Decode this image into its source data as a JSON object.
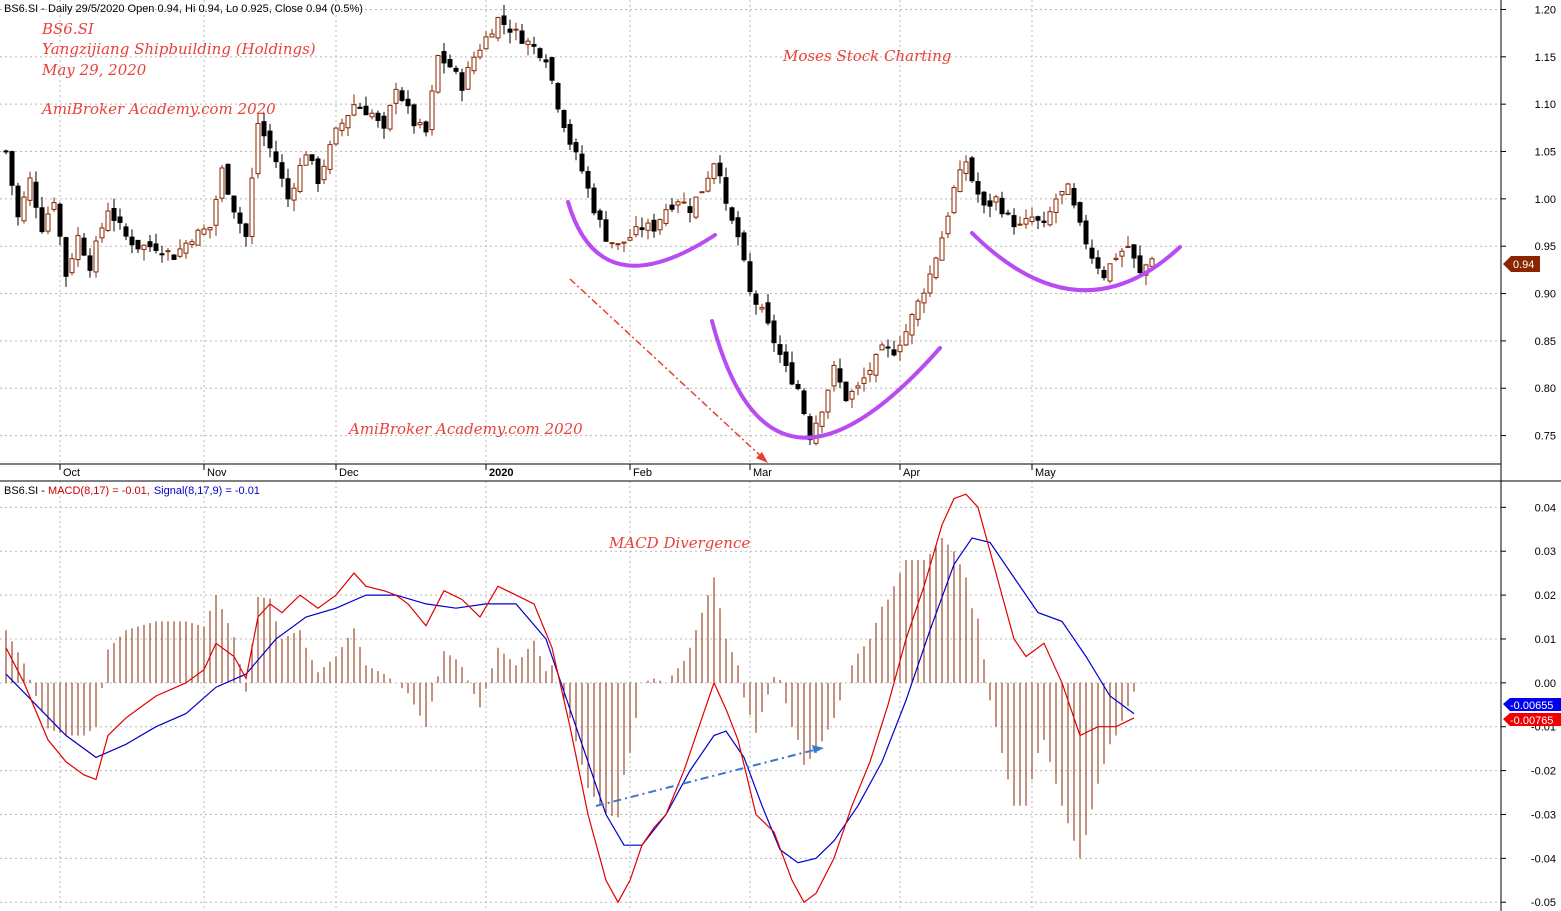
{
  "header": {
    "price_info": "BS6.SI - Daily 29/5/2020 Open 0.94, Hi 0.94, Lo 0.925, Close 0.94 (0.5%)",
    "macd_prefix": "BS6.SI - ",
    "macd_label": "MACD(8,17) = -0.01,",
    "signal_label": "Signal(8,17,9) = -0.01"
  },
  "annotations": {
    "ticker": "BS6.SI",
    "company": "Yangzijiang Shipbuilding (Holdings)",
    "date": "May 29, 2020",
    "watermark_top": "AmiBroker Academy.com  2020",
    "watermark_bottom": "AmiBroker Academy.com  2020",
    "title_right": "Moses Stock Charting",
    "macd_title": "MACD Divergence"
  },
  "badges": {
    "price": "0.94",
    "signal_value": "-0.00655",
    "macd_value": "-0.00765"
  },
  "colors": {
    "bull": "#8b2500",
    "bear": "#000000",
    "macd": "#e00000",
    "signal": "#0000cc",
    "hist": "#8b2500",
    "pattern": "#b84cf2",
    "annotation": "#e8413a",
    "grid": "#b8b8b8"
  },
  "chart_data": [
    {
      "type": "candlestick",
      "ylim": [
        0.72,
        1.21
      ],
      "yticks": [
        0.75,
        0.8,
        0.85,
        0.9,
        0.95,
        1.0,
        1.05,
        1.1,
        1.15,
        1.2
      ],
      "ytick_labels": [
        "0.75",
        "0.80",
        "0.85",
        "0.90",
        "0.95",
        "1.00",
        "1.05",
        "1.10",
        "1.15",
        "1.20"
      ],
      "x_labels": [
        {
          "label": "Oct",
          "bar": 9
        },
        {
          "label": "Nov",
          "bar": 33
        },
        {
          "label": "Dec",
          "bar": 55
        },
        {
          "label": "2020",
          "bar": 80
        },
        {
          "label": "Feb",
          "bar": 104
        },
        {
          "label": "Mar",
          "bar": 124
        },
        {
          "label": "Apr",
          "bar": 149
        },
        {
          "label": "May",
          "bar": 171
        }
      ],
      "anchors": [
        [
          0,
          1.05
        ],
        [
          2,
          0.98
        ],
        [
          4,
          1.02
        ],
        [
          6,
          0.97
        ],
        [
          8,
          1.0
        ],
        [
          10,
          0.92
        ],
        [
          12,
          0.96
        ],
        [
          14,
          0.93
        ],
        [
          17,
          0.99
        ],
        [
          20,
          0.96
        ],
        [
          22,
          0.95
        ],
        [
          25,
          0.95
        ],
        [
          28,
          0.94
        ],
        [
          31,
          0.96
        ],
        [
          34,
          0.97
        ],
        [
          36,
          1.03
        ],
        [
          38,
          0.99
        ],
        [
          40,
          0.96
        ],
        [
          42,
          1.08
        ],
        [
          45,
          1.04
        ],
        [
          47,
          1.0
        ],
        [
          50,
          1.05
        ],
        [
          52,
          1.02
        ],
        [
          55,
          1.07
        ],
        [
          58,
          1.1
        ],
        [
          61,
          1.09
        ],
        [
          63,
          1.07
        ],
        [
          65,
          1.12
        ],
        [
          68,
          1.08
        ],
        [
          70,
          1.07
        ],
        [
          72,
          1.15
        ],
        [
          74,
          1.14
        ],
        [
          76,
          1.12
        ],
        [
          78,
          1.15
        ],
        [
          80,
          1.17
        ],
        [
          82,
          1.19
        ],
        [
          84,
          1.18
        ],
        [
          86,
          1.17
        ],
        [
          88,
          1.16
        ],
        [
          90,
          1.15
        ],
        [
          92,
          1.1
        ],
        [
          94,
          1.06
        ],
        [
          96,
          1.03
        ],
        [
          98,
          0.99
        ],
        [
          100,
          0.96
        ],
        [
          102,
          0.95
        ],
        [
          104,
          0.96
        ],
        [
          106,
          0.97
        ],
        [
          108,
          0.97
        ],
        [
          110,
          0.99
        ],
        [
          112,
          1.0
        ],
        [
          114,
          0.99
        ],
        [
          116,
          1.01
        ],
        [
          118,
          1.04
        ],
        [
          119,
          1.03
        ],
        [
          120,
          0.99
        ],
        [
          122,
          0.96
        ],
        [
          124,
          0.9
        ],
        [
          126,
          0.88
        ],
        [
          128,
          0.85
        ],
        [
          130,
          0.82
        ],
        [
          132,
          0.8
        ],
        [
          134,
          0.75
        ],
        [
          136,
          0.78
        ],
        [
          138,
          0.82
        ],
        [
          140,
          0.79
        ],
        [
          142,
          0.8
        ],
        [
          144,
          0.82
        ],
        [
          146,
          0.84
        ],
        [
          148,
          0.84
        ],
        [
          150,
          0.86
        ],
        [
          152,
          0.89
        ],
        [
          154,
          0.92
        ],
        [
          156,
          0.96
        ],
        [
          158,
          1.01
        ],
        [
          160,
          1.04
        ],
        [
          161,
          1.02
        ],
        [
          163,
          0.99
        ],
        [
          165,
          1.0
        ],
        [
          167,
          0.98
        ],
        [
          169,
          0.97
        ],
        [
          171,
          0.98
        ],
        [
          173,
          0.97
        ],
        [
          175,
          1.0
        ],
        [
          177,
          1.01
        ],
        [
          179,
          0.97
        ],
        [
          181,
          0.94
        ],
        [
          183,
          0.92
        ],
        [
          185,
          0.94
        ],
        [
          187,
          0.95
        ],
        [
          189,
          0.92
        ],
        [
          191,
          0.94
        ]
      ]
    },
    {
      "type": "macd",
      "ylim": [
        -0.052,
        0.046
      ],
      "yticks": [
        -0.05,
        -0.04,
        -0.03,
        -0.02,
        -0.01,
        0.0,
        0.01,
        0.02,
        0.03,
        0.04
      ],
      "ytick_labels": [
        "-0.05",
        "-0.04",
        "-0.03",
        "-0.02",
        "-0.01",
        "0.00",
        "0.01",
        "0.02",
        "0.03",
        "0.04"
      ],
      "series": [
        {
          "name": "MACD(8,17)",
          "points": [
            [
              0,
              0.008
            ],
            [
              3,
              0.0
            ],
            [
              7,
              -0.013
            ],
            [
              10,
              -0.018
            ],
            [
              13,
              -0.021
            ],
            [
              15,
              -0.022
            ],
            [
              17,
              -0.012
            ],
            [
              20,
              -0.008
            ],
            [
              25,
              -0.003
            ],
            [
              30,
              0.0
            ],
            [
              33,
              0.003
            ],
            [
              35,
              0.009
            ],
            [
              38,
              0.006
            ],
            [
              40,
              0.001
            ],
            [
              42,
              0.015
            ],
            [
              44,
              0.018
            ],
            [
              46,
              0.016
            ],
            [
              49,
              0.02
            ],
            [
              52,
              0.017
            ],
            [
              55,
              0.02
            ],
            [
              58,
              0.025
            ],
            [
              60,
              0.022
            ],
            [
              63,
              0.021
            ],
            [
              65,
              0.02
            ],
            [
              67,
              0.018
            ],
            [
              70,
              0.013
            ],
            [
              73,
              0.021
            ],
            [
              76,
              0.019
            ],
            [
              79,
              0.015
            ],
            [
              82,
              0.022
            ],
            [
              85,
              0.02
            ],
            [
              88,
              0.018
            ],
            [
              91,
              0.008
            ],
            [
              94,
              -0.01
            ],
            [
              97,
              -0.03
            ],
            [
              100,
              -0.045
            ],
            [
              102,
              -0.05
            ],
            [
              104,
              -0.045
            ],
            [
              106,
              -0.037
            ],
            [
              108,
              -0.033
            ],
            [
              110,
              -0.03
            ],
            [
              113,
              -0.02
            ],
            [
              116,
              -0.008
            ],
            [
              118,
              0.0
            ],
            [
              120,
              -0.006
            ],
            [
              122,
              -0.013
            ],
            [
              125,
              -0.03
            ],
            [
              128,
              -0.034
            ],
            [
              131,
              -0.045
            ],
            [
              133,
              -0.05
            ],
            [
              135,
              -0.048
            ],
            [
              138,
              -0.04
            ],
            [
              141,
              -0.028
            ],
            [
              144,
              -0.018
            ],
            [
              147,
              -0.005
            ],
            [
              150,
              0.01
            ],
            [
              153,
              0.022
            ],
            [
              156,
              0.036
            ],
            [
              158,
              0.042
            ],
            [
              160,
              0.043
            ],
            [
              162,
              0.04
            ],
            [
              164,
              0.03
            ],
            [
              166,
              0.02
            ],
            [
              168,
              0.01
            ],
            [
              170,
              0.006
            ],
            [
              173,
              0.009
            ],
            [
              176,
              0.0
            ],
            [
              179,
              -0.012
            ],
            [
              182,
              -0.01
            ],
            [
              185,
              -0.01
            ],
            [
              188,
              -0.008
            ]
          ]
        },
        {
          "name": "Signal(8,17,9)",
          "points": [
            [
              0,
              0.002
            ],
            [
              5,
              -0.005
            ],
            [
              10,
              -0.012
            ],
            [
              15,
              -0.017
            ],
            [
              20,
              -0.014
            ],
            [
              25,
              -0.01
            ],
            [
              30,
              -0.007
            ],
            [
              35,
              -0.001
            ],
            [
              40,
              0.002
            ],
            [
              45,
              0.01
            ],
            [
              50,
              0.015
            ],
            [
              55,
              0.017
            ],
            [
              60,
              0.02
            ],
            [
              65,
              0.02
            ],
            [
              70,
              0.018
            ],
            [
              75,
              0.017
            ],
            [
              80,
              0.018
            ],
            [
              85,
              0.018
            ],
            [
              90,
              0.01
            ],
            [
              95,
              -0.01
            ],
            [
              100,
              -0.03
            ],
            [
              103,
              -0.037
            ],
            [
              106,
              -0.037
            ],
            [
              110,
              -0.03
            ],
            [
              114,
              -0.02
            ],
            [
              118,
              -0.012
            ],
            [
              120,
              -0.011
            ],
            [
              123,
              -0.017
            ],
            [
              126,
              -0.028
            ],
            [
              129,
              -0.038
            ],
            [
              132,
              -0.041
            ],
            [
              135,
              -0.04
            ],
            [
              138,
              -0.036
            ],
            [
              142,
              -0.028
            ],
            [
              146,
              -0.018
            ],
            [
              150,
              -0.004
            ],
            [
              154,
              0.012
            ],
            [
              158,
              0.027
            ],
            [
              161,
              0.033
            ],
            [
              164,
              0.032
            ],
            [
              168,
              0.024
            ],
            [
              172,
              0.016
            ],
            [
              176,
              0.014
            ],
            [
              180,
              0.006
            ],
            [
              184,
              -0.003
            ],
            [
              188,
              -0.007
            ]
          ]
        }
      ]
    }
  ]
}
